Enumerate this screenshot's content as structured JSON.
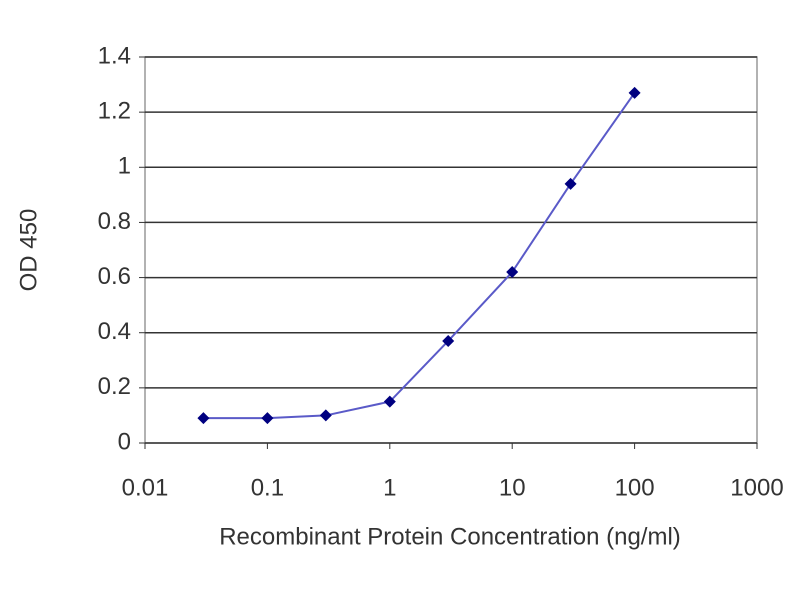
{
  "chart_data": {
    "type": "line",
    "xlabel": "Recombinant Protein Concentration (ng/ml)",
    "ylabel": "OD 450",
    "x": [
      0.03,
      0.1,
      0.3,
      1,
      3,
      10,
      30,
      100
    ],
    "series": [
      {
        "color": "#000080",
        "line_color": "#5a5ac8",
        "values": [
          0.09,
          0.09,
          0.1,
          0.15,
          0.37,
          0.62,
          0.94,
          1.27
        ]
      }
    ],
    "xscale": "log",
    "xlim": [
      0.01,
      1000
    ],
    "xticks": [
      0.01,
      0.1,
      1,
      10,
      100,
      1000
    ],
    "ylim": [
      0,
      1.4
    ],
    "yticks": [
      0,
      0.2,
      0.4,
      0.6,
      0.8,
      1,
      1.2,
      1.4
    ],
    "grid": true
  }
}
